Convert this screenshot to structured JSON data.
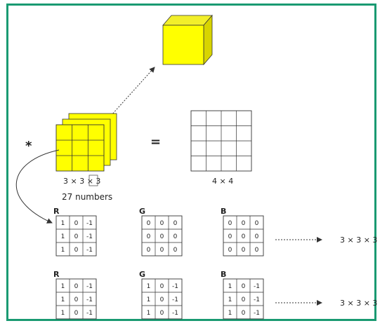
{
  "colors": {
    "border": "#1a9a72",
    "cube_front": "#ffff00",
    "cube_top": "#f2ef2a",
    "cube_side": "#d8d400",
    "grid_line": "#333333",
    "arrow": "#333333"
  },
  "top": {
    "operator_convolve": "*",
    "operator_equals": "=",
    "filter_dims_label": "3 × 3 × 3",
    "filter_count_label": "27 numbers",
    "output_label": "4 × 4"
  },
  "filter_rows": [
    {
      "result_label": "3 × 3 × 3",
      "channels": [
        {
          "name": "R",
          "values": [
            [
              1,
              0,
              -1
            ],
            [
              1,
              0,
              -1
            ],
            [
              1,
              0,
              -1
            ]
          ]
        },
        {
          "name": "G",
          "values": [
            [
              0,
              0,
              0
            ],
            [
              0,
              0,
              0
            ],
            [
              0,
              0,
              0
            ]
          ]
        },
        {
          "name": "B",
          "values": [
            [
              0,
              0,
              0
            ],
            [
              0,
              0,
              0
            ],
            [
              0,
              0,
              0
            ]
          ]
        }
      ]
    },
    {
      "result_label": "3 × 3 × 3",
      "channels": [
        {
          "name": "R",
          "values": [
            [
              1,
              0,
              -1
            ],
            [
              1,
              0,
              -1
            ],
            [
              1,
              0,
              -1
            ]
          ]
        },
        {
          "name": "G",
          "values": [
            [
              1,
              0,
              -1
            ],
            [
              1,
              0,
              -1
            ],
            [
              1,
              0,
              -1
            ]
          ]
        },
        {
          "name": "B",
          "values": [
            [
              1,
              0,
              -1
            ],
            [
              1,
              0,
              -1
            ],
            [
              1,
              0,
              -1
            ]
          ]
        }
      ]
    }
  ]
}
